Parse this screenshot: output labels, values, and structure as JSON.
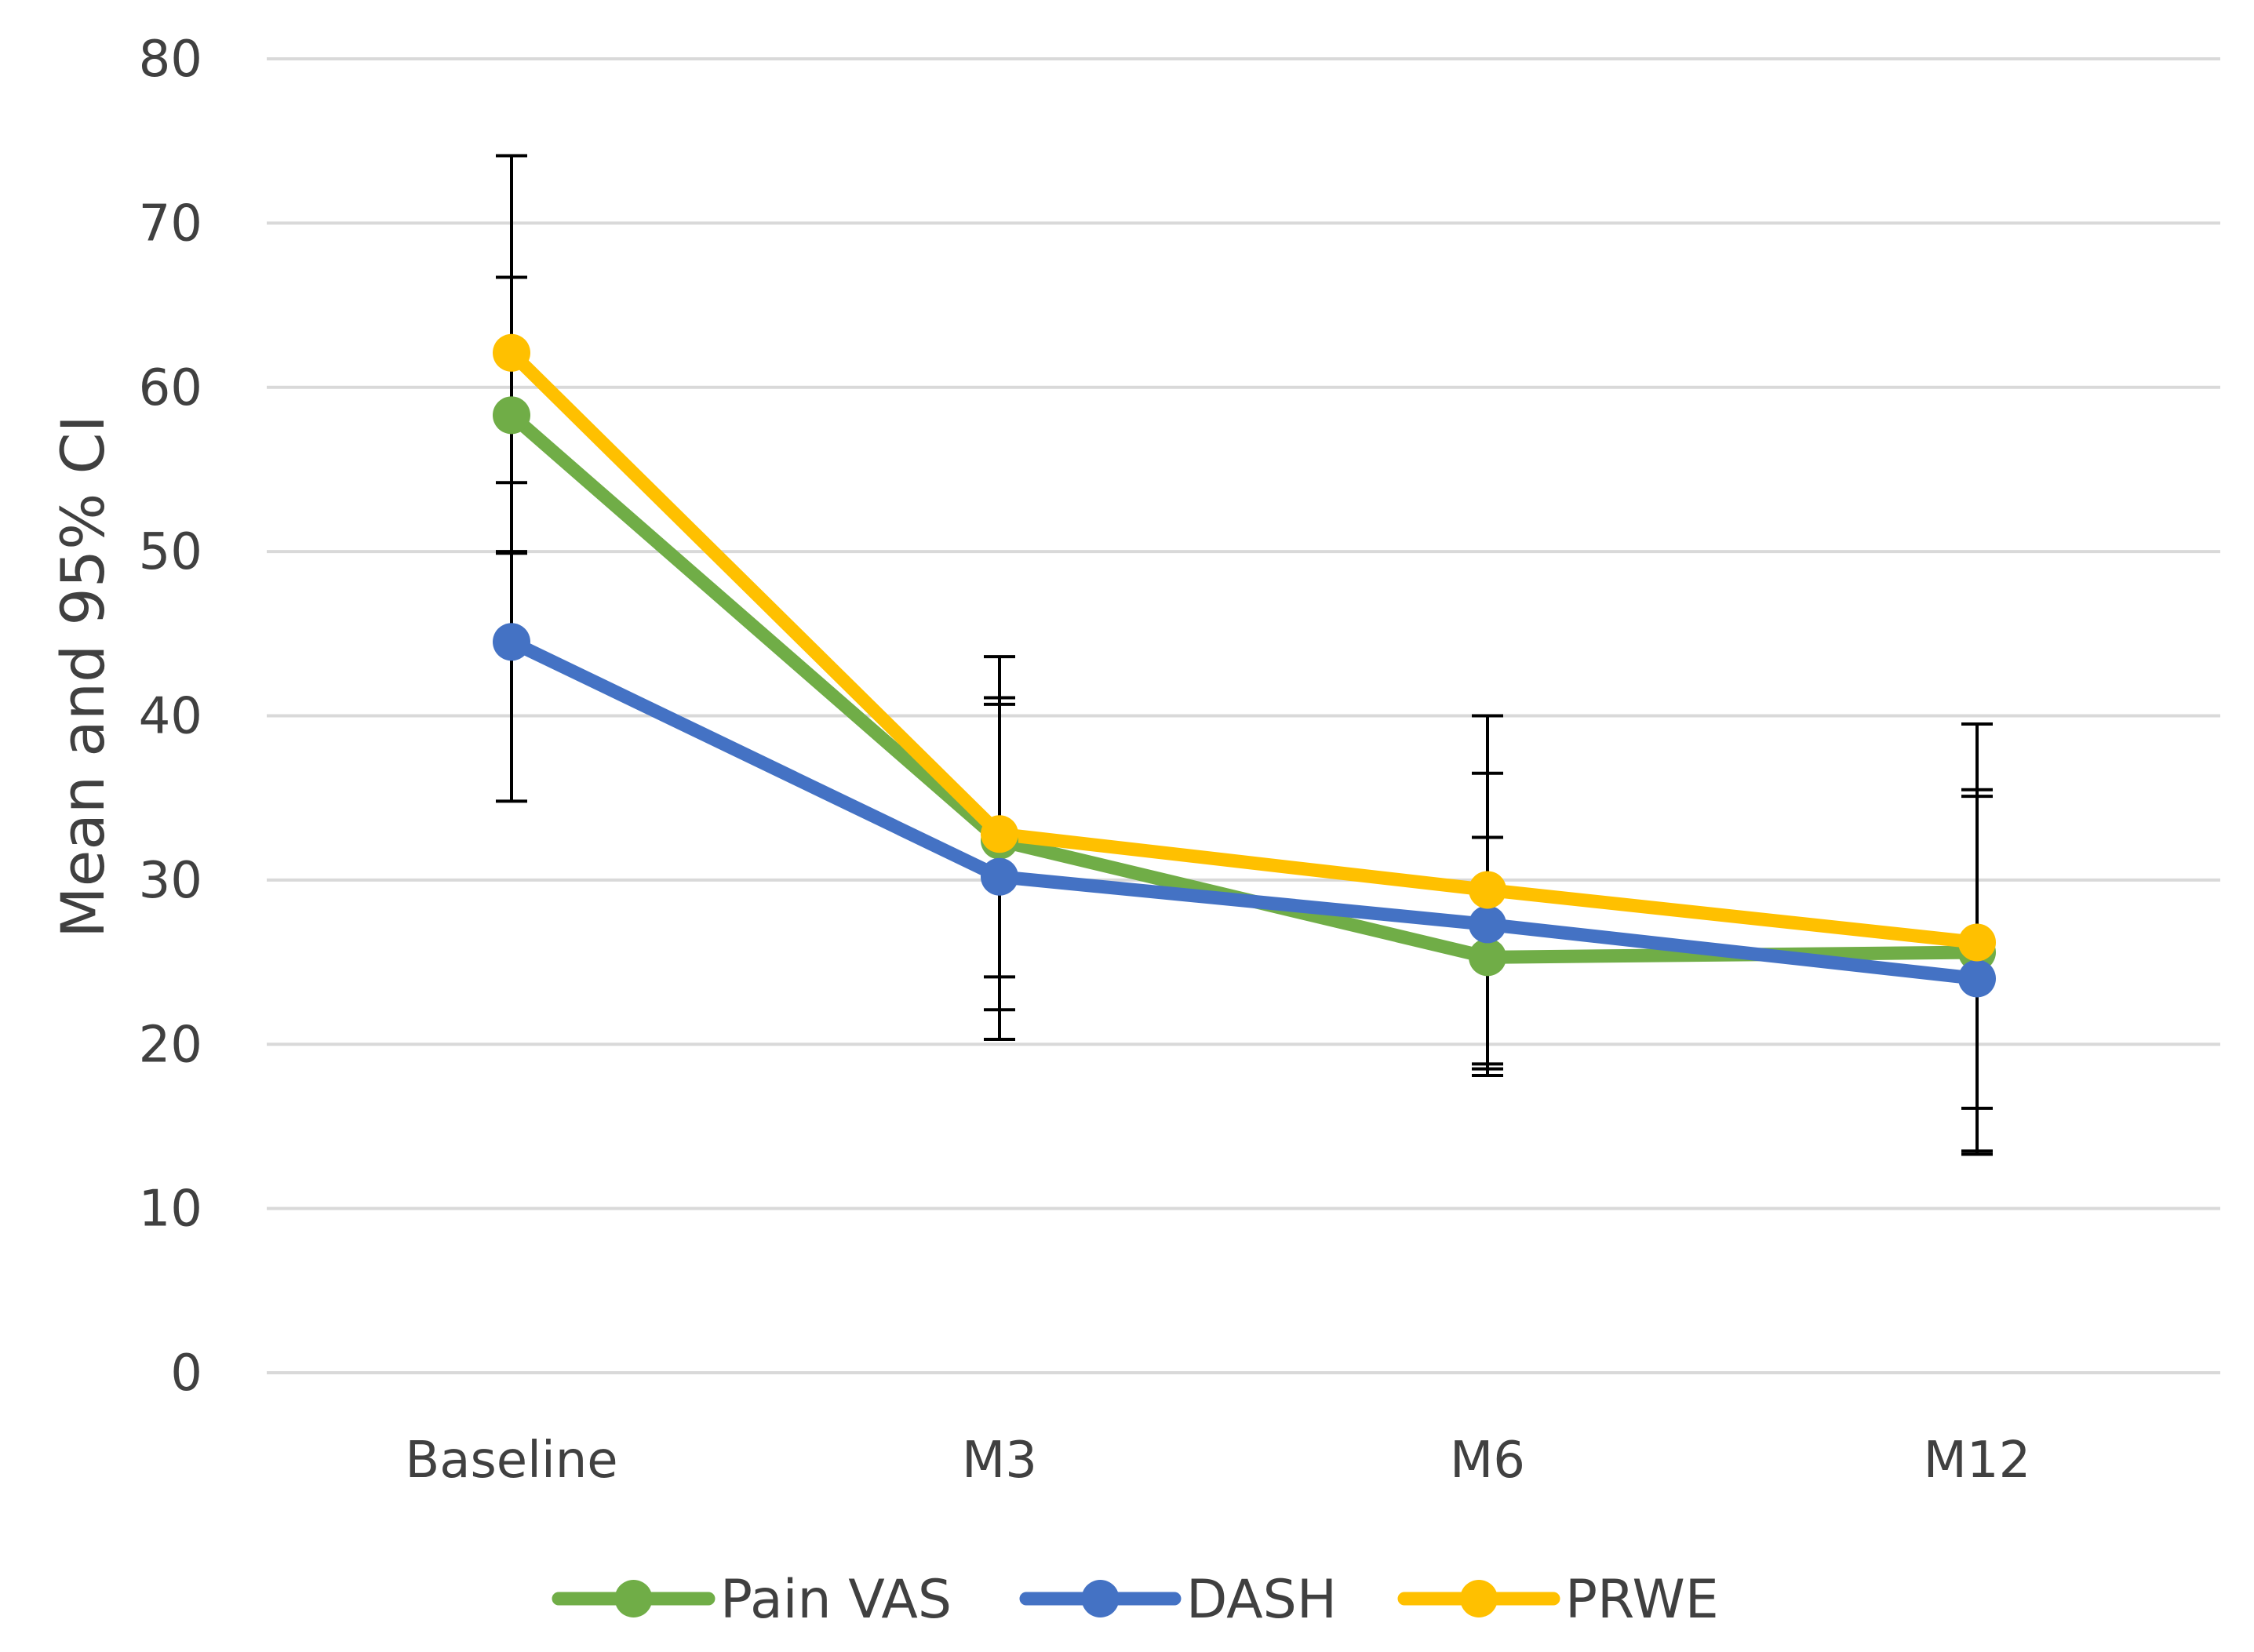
{
  "chart_data": {
    "type": "line",
    "title": "",
    "xlabel": "",
    "ylabel": "Mean and 95% CI",
    "categories": [
      "Baseline",
      "M3",
      "M6",
      "M12"
    ],
    "ylim": [
      0,
      80
    ],
    "yticks": [
      0,
      10,
      20,
      30,
      40,
      50,
      60,
      70,
      80
    ],
    "grid": true,
    "legend_position": "bottom",
    "series": [
      {
        "name": "Pain VAS",
        "color": "#70ad47",
        "values": [
          58.3,
          32.4,
          25.3,
          25.6
        ],
        "ci_low": [
          49.9,
          20.3,
          18.5,
          16.1
        ],
        "ci_high": [
          66.7,
          43.6,
          32.6,
          35.1
        ]
      },
      {
        "name": "DASH",
        "color": "#4472c4",
        "values": [
          44.5,
          30.2,
          27.3,
          24.0
        ],
        "ci_low": [
          34.8,
          22.1,
          18.1,
          13.3
        ],
        "ci_high": [
          54.2,
          41.1,
          36.5,
          35.5
        ]
      },
      {
        "name": "PRWE",
        "color": "#ffc000",
        "values": [
          62.1,
          32.8,
          29.4,
          26.2
        ],
        "ci_low": [
          50.0,
          24.1,
          18.8,
          13.5
        ],
        "ci_high": [
          74.1,
          40.7,
          40.0,
          39.5
        ]
      }
    ]
  }
}
